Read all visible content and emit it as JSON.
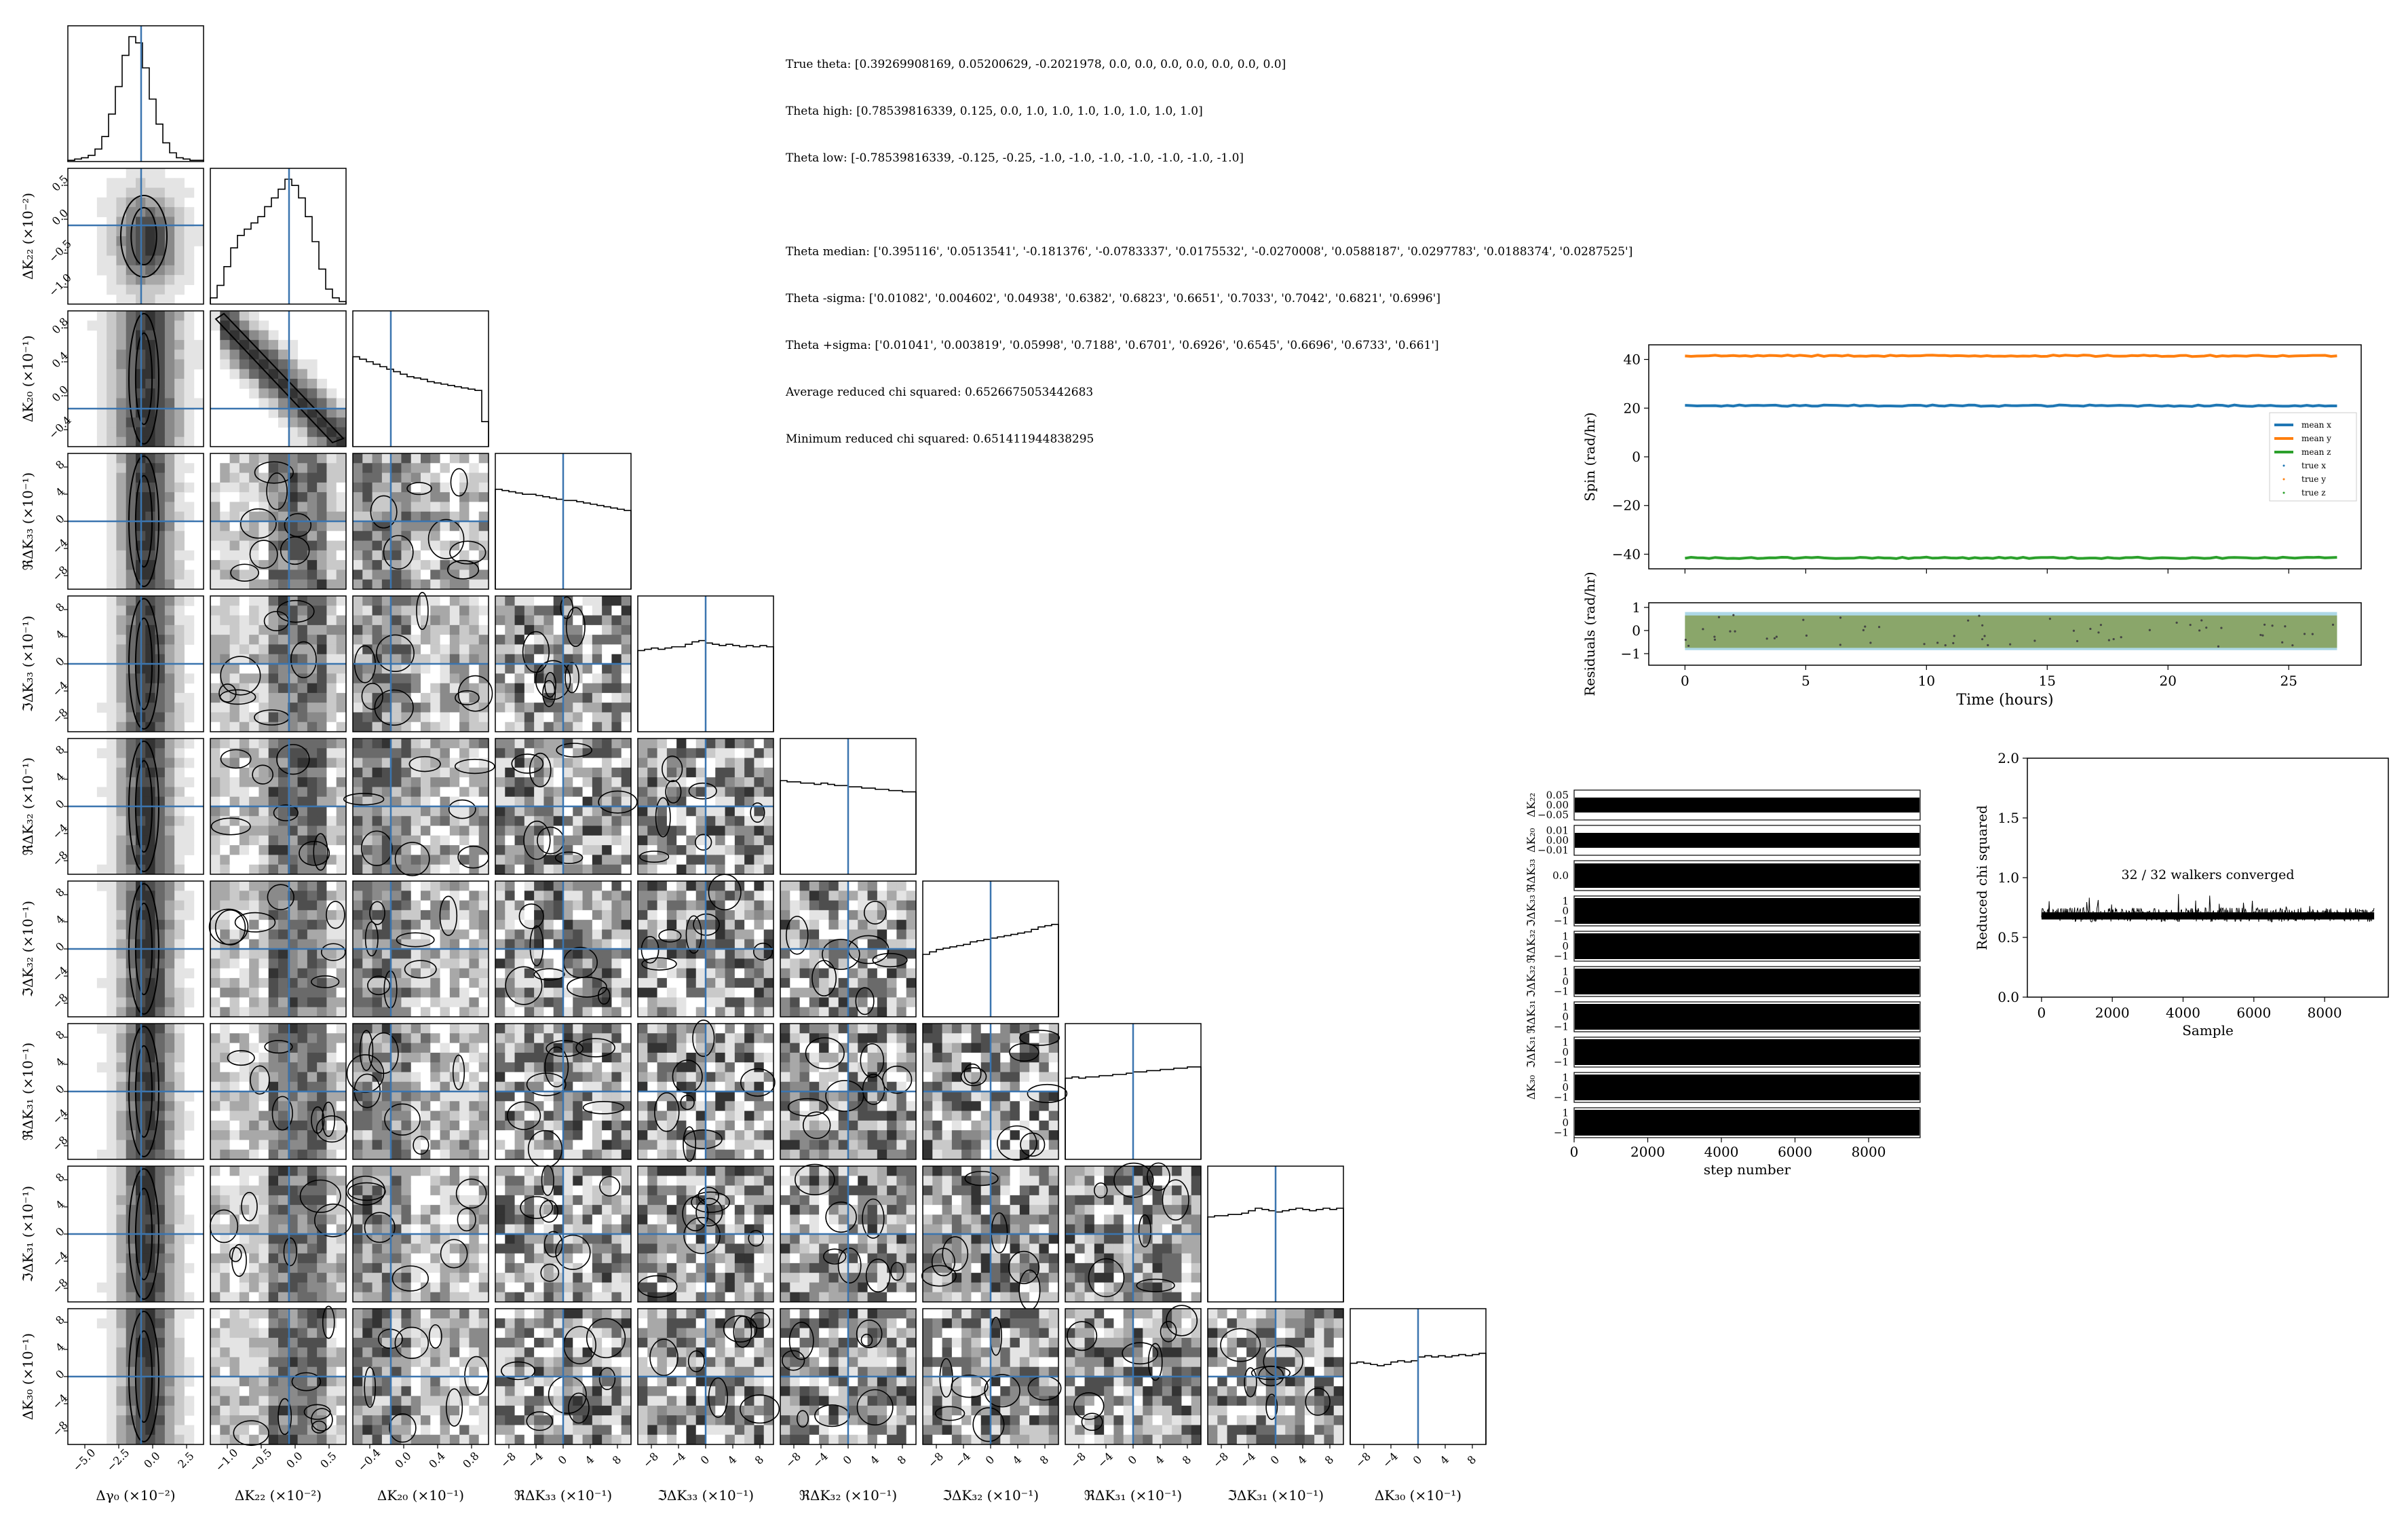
{
  "summary": {
    "true_theta": "True theta: [0.39269908169, 0.05200629, -0.2021978, 0.0, 0.0, 0.0, 0.0, 0.0, 0.0, 0.0]",
    "theta_high": "Theta high: [0.78539816339, 0.125, 0.0, 1.0, 1.0, 1.0, 1.0, 1.0, 1.0, 1.0]",
    "theta_low": "Theta low: [-0.78539816339, -0.125, -0.25, -1.0, -1.0, -1.0, -1.0, -1.0, -1.0, -1.0]",
    "theta_median": "Theta median: ['0.395116', '0.0513541', '-0.181376', '-0.0783337', '0.0175532', '-0.0270008', '0.0588187', '0.0297783', '0.0188374', '0.0287525']",
    "theta_minus_sigma": "Theta -sigma: ['0.01082', '0.004602', '0.04938', '0.6382', '0.6823', '0.6651', '0.7033', '0.7042', '0.6821', '0.6996']",
    "theta_plus_sigma": "Theta +sigma: ['0.01041', '0.003819', '0.05998', '0.7188', '0.6701', '0.6926', '0.6545', '0.6696', '0.6733', '0.661']",
    "avg_chi": "Average reduced chi squared: 0.6526675053442683",
    "min_chi": "Minimum reduced chi squared: 0.651411944838295"
  },
  "colors": {
    "truth_line": "#3b75af",
    "mean_x": "#1f77b4",
    "mean_y": "#ff7f0e",
    "mean_z": "#2ca02c",
    "residual_band": "#8aa66a",
    "residual_band_outer": "#add8e6"
  },
  "chart_data": [
    {
      "type": "heatmap",
      "subtype": "corner",
      "ylabels": [
        "",
        "ΔK₂₂ (×10⁻²)",
        "ΔK₂₀ (×10⁻¹)",
        "ℜΔK₃₃ (×10⁻¹)",
        "ℑΔK₃₃ (×10⁻¹)",
        "ℜΔK₃₂ (×10⁻¹)",
        "ℑΔK₃₂ (×10⁻¹)",
        "ℜΔK₃₁ (×10⁻¹)",
        "ℑΔK₃₁ (×10⁻¹)",
        "ΔK₃₀ (×10⁻¹)"
      ],
      "xlabels": [
        "Δγ₀ (×10⁻²)",
        "ΔK₂₂ (×10⁻²)",
        "ΔK₂₀ (×10⁻¹)",
        "ℜΔK₃₃ (×10⁻¹)",
        "ℑΔK₃₃ (×10⁻¹)",
        "ℜΔK₃₂ (×10⁻¹)",
        "ℑΔK₃₂ (×10⁻¹)",
        "ℜΔK₃₁ (×10⁻¹)",
        "ℑΔK₃₁ (×10⁻¹)",
        "ΔK₃₀ (×10⁻¹)"
      ],
      "xticks": [
        [
          "−5.0",
          "−2.5",
          "0.0",
          "2.5"
        ],
        [
          "−1.0",
          "−0.5",
          "0.0",
          "0.5"
        ],
        [
          "−0.4",
          "0.0",
          "0.4",
          "0.8"
        ],
        [
          "−8",
          "−4",
          "0",
          "4",
          "8"
        ],
        [
          "−8",
          "−4",
          "0",
          "4",
          "8"
        ],
        [
          "−8",
          "−4",
          "0",
          "4",
          "8"
        ],
        [
          "−8",
          "−4",
          "0",
          "4",
          "8"
        ],
        [
          "−8",
          "−4",
          "0",
          "4",
          "8"
        ],
        [
          "−8",
          "−4",
          "0",
          "4",
          "8"
        ],
        [
          "−8",
          "−4",
          "0",
          "4",
          "8"
        ]
      ],
      "yticks": [
        [],
        [
          "0.5",
          "0.0",
          "−0.5",
          "−1.0"
        ],
        [
          "0.8",
          "0.4",
          "0.0",
          "−0.4"
        ],
        [
          "8",
          "4",
          "0",
          "−4",
          "−8"
        ],
        [
          "8",
          "4",
          "0",
          "−4",
          "−8"
        ],
        [
          "8",
          "4",
          "0",
          "−4",
          "−8"
        ],
        [
          "8",
          "4",
          "0",
          "−4",
          "−8"
        ],
        [
          "8",
          "4",
          "0",
          "−4",
          "−8"
        ],
        [
          "8",
          "4",
          "0",
          "−4",
          "−8"
        ],
        [
          "8",
          "4",
          "0",
          "−4",
          "−8"
        ]
      ],
      "truths_frac": [
        0.54,
        0.58,
        0.28,
        0.5,
        0.5,
        0.5,
        0.5,
        0.5,
        0.5,
        0.5
      ],
      "diag_hist": [
        [
          0.01,
          0.02,
          0.03,
          0.05,
          0.1,
          0.2,
          0.38,
          0.6,
          0.85,
          1.0,
          0.95,
          0.75,
          0.5,
          0.3,
          0.15,
          0.07,
          0.03,
          0.02,
          0.01,
          0.01
        ],
        [
          0.05,
          0.15,
          0.3,
          0.45,
          0.55,
          0.6,
          0.65,
          0.7,
          0.78,
          0.85,
          0.92,
          1.0,
          0.95,
          0.85,
          0.7,
          0.5,
          0.28,
          0.12,
          0.05,
          0.02
        ],
        [
          0.72,
          0.7,
          0.68,
          0.66,
          0.64,
          0.62,
          0.6,
          0.58,
          0.56,
          0.55,
          0.54,
          0.52,
          0.51,
          0.5,
          0.49,
          0.48,
          0.47,
          0.46,
          0.45,
          0.2
        ],
        [
          0.8,
          0.79,
          0.78,
          0.77,
          0.76,
          0.76,
          0.75,
          0.74,
          0.73,
          0.72,
          0.71,
          0.71,
          0.7,
          0.69,
          0.68,
          0.67,
          0.66,
          0.65,
          0.64,
          0.63
        ],
        [
          0.65,
          0.66,
          0.67,
          0.66,
          0.67,
          0.68,
          0.68,
          0.7,
          0.72,
          0.73,
          0.71,
          0.7,
          0.69,
          0.7,
          0.69,
          0.68,
          0.69,
          0.68,
          0.69,
          0.68
        ],
        [
          0.75,
          0.74,
          0.74,
          0.73,
          0.73,
          0.72,
          0.73,
          0.72,
          0.71,
          0.71,
          0.7,
          0.7,
          0.69,
          0.69,
          0.68,
          0.68,
          0.67,
          0.67,
          0.66,
          0.66
        ],
        [
          0.5,
          0.52,
          0.54,
          0.55,
          0.56,
          0.57,
          0.58,
          0.6,
          0.61,
          0.62,
          0.63,
          0.64,
          0.65,
          0.66,
          0.67,
          0.68,
          0.7,
          0.72,
          0.73,
          0.74
        ],
        [
          0.65,
          0.66,
          0.65,
          0.66,
          0.66,
          0.67,
          0.67,
          0.68,
          0.68,
          0.69,
          0.7,
          0.7,
          0.71,
          0.71,
          0.72,
          0.72,
          0.73,
          0.73,
          0.74,
          0.74
        ],
        [
          0.68,
          0.69,
          0.69,
          0.7,
          0.7,
          0.71,
          0.73,
          0.75,
          0.74,
          0.73,
          0.72,
          0.73,
          0.74,
          0.75,
          0.74,
          0.73,
          0.74,
          0.75,
          0.74,
          0.75
        ],
        [
          0.65,
          0.66,
          0.65,
          0.64,
          0.63,
          0.64,
          0.66,
          0.67,
          0.66,
          0.67,
          0.7,
          0.71,
          0.7,
          0.71,
          0.7,
          0.71,
          0.72,
          0.71,
          0.72,
          0.73
        ]
      ]
    },
    {
      "type": "line",
      "title": "",
      "ylabel": "Spin (rad/hr)",
      "xlabel": "Time (hours)",
      "xlim": [
        -1.5,
        28
      ],
      "ylim": [
        -46,
        46
      ],
      "yticks": [
        -40,
        -20,
        0,
        20,
        40
      ],
      "xticks": [
        0,
        5,
        10,
        15,
        20,
        25
      ],
      "legend_position": "right",
      "series": [
        {
          "name": "mean x",
          "style": "line",
          "y": 21.0
        },
        {
          "name": "mean y",
          "style": "line",
          "y": 41.5
        },
        {
          "name": "mean z",
          "style": "line",
          "y": -41.5
        },
        {
          "name": "true x",
          "style": "marker"
        },
        {
          "name": "true y",
          "style": "marker"
        },
        {
          "name": "true z",
          "style": "marker"
        }
      ]
    },
    {
      "type": "area",
      "ylabel": "Residuals (rad/hr)",
      "xlabel": "Time (hours)",
      "xlim": [
        -1.5,
        28
      ],
      "ylim": [
        -1.5,
        1.2
      ],
      "yticks": [
        1,
        0,
        -1
      ],
      "xticks": [
        0,
        5,
        10,
        15,
        20,
        25
      ],
      "band_inner": [
        -0.75,
        0.65
      ],
      "band_outer": [
        -0.85,
        0.8
      ],
      "band_x": [
        0,
        27
      ]
    },
    {
      "type": "line",
      "subtype": "walker-traces",
      "xlabel": "step number",
      "xlim": [
        0,
        9400
      ],
      "xticks": [
        0,
        2000,
        4000,
        6000,
        8000
      ],
      "panels": [
        {
          "label": "ΔK₂₂",
          "yticks": [
            "0.05",
            "0.00",
            "−0.05"
          ]
        },
        {
          "label": "ΔK₂₀",
          "yticks": [
            "0.01",
            "0.00",
            "−0.01"
          ]
        },
        {
          "label": "ℜΔK₃₃",
          "yticks": [
            "0.0"
          ]
        },
        {
          "label": "ℑΔK₃₃",
          "yticks": [
            "1",
            "0",
            "−1"
          ]
        },
        {
          "label": "ℜΔK₃₂",
          "yticks": [
            "1",
            "0",
            "−1"
          ]
        },
        {
          "label": "ℑΔK₃₂",
          "yticks": [
            "1",
            "0",
            "−1"
          ]
        },
        {
          "label": "ℜΔK₃₁",
          "yticks": [
            "1",
            "0",
            "−1"
          ]
        },
        {
          "label": "ℑΔK₃₁",
          "yticks": [
            "1",
            "0",
            "−1"
          ]
        },
        {
          "label": "ΔK₃₀",
          "yticks": [
            "1",
            "0",
            "−1"
          ]
        },
        {
          "label": "",
          "yticks": [
            "1",
            "0",
            "−1"
          ]
        }
      ]
    },
    {
      "type": "line",
      "subtype": "reduced-chi",
      "ylabel": "Reduced chi squared",
      "xlabel": "Sample",
      "annotation": "32 / 32 walkers converged",
      "xlim": [
        -400,
        9800
      ],
      "ylim": [
        0,
        2.0
      ],
      "xticks": [
        0,
        2000,
        4000,
        6000,
        8000
      ],
      "yticks": [
        0.0,
        0.5,
        1.0,
        1.5,
        2.0
      ],
      "series_level": 0.69,
      "series_spread": 0.06,
      "series_xmax": 9400
    }
  ]
}
